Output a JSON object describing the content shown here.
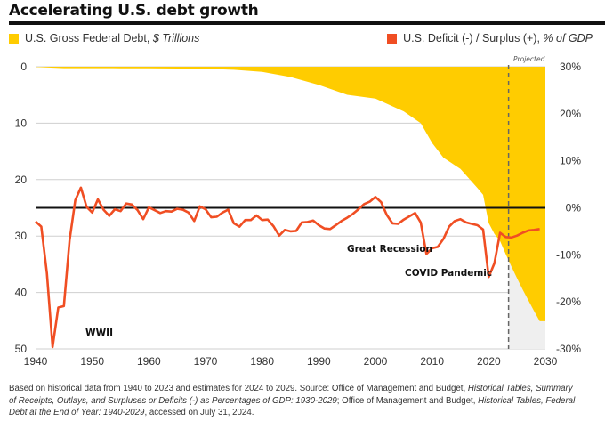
{
  "title": "Accelerating U.S. debt growth",
  "legend": {
    "debt": {
      "label": "U.S. Gross Federal Debt, ",
      "label_italic": "$ Trillions",
      "color": "#FFCC00"
    },
    "deficit": {
      "label": "U.S. Deficit (-) / Surplus (+), ",
      "label_italic": "% of GDP",
      "color": "#F04E23"
    }
  },
  "projected_label": "Projected",
  "source": {
    "text1": "Based on historical data from 1940 to 2023 and estimates for 2024 to 2029. Source: Office of Management and Budget, ",
    "italic1": "Historical Tables, Summary of Receipts, Outlays, and Surpluses or Deficits (-) as Percentages of GDP: 1930-2029",
    "text2": "; Office of Management and Budget, ",
    "italic2": "Historical Tables, Federal Debt at the End of Year: 1940-2029",
    "text3": ", accessed on July 31, 2024."
  },
  "chart_data": {
    "type": "area+line",
    "title": "Accelerating U.S. debt growth",
    "x_axis": {
      "range": [
        1940,
        2030
      ],
      "ticks": [
        "1940",
        "1950",
        "1960",
        "1970",
        "1980",
        "1990",
        "2000",
        "2010",
        "2020",
        "2030"
      ]
    },
    "left_axis": {
      "label": "U.S. Gross Federal Debt, $ Trillions",
      "range": [
        0,
        50
      ],
      "inverted": true,
      "ticks": [
        "0",
        "10",
        "20",
        "30",
        "40",
        "50"
      ]
    },
    "right_axis": {
      "label": "U.S. Deficit (-) / Surplus (+), % of GDP",
      "range": [
        -30,
        30
      ],
      "ticks": [
        "30%",
        "20%",
        "10%",
        "0%",
        "-10%",
        "-20%",
        "-30%"
      ]
    },
    "grid": true,
    "projection_start": 2023.5,
    "series": [
      {
        "name": "U.S. Gross Federal Debt, $ Trillions",
        "type": "area",
        "color": "#FFCC00",
        "x": [
          1940,
          1945,
          1950,
          1955,
          1960,
          1965,
          1970,
          1975,
          1980,
          1985,
          1990,
          1995,
          2000,
          2005,
          2008,
          2010,
          2012,
          2015,
          2018,
          2019,
          2020,
          2021,
          2022,
          2023,
          2024,
          2025,
          2026,
          2027,
          2028,
          2029
        ],
        "values": [
          0.05,
          0.26,
          0.26,
          0.27,
          0.29,
          0.32,
          0.38,
          0.54,
          0.91,
          1.82,
          3.21,
          4.97,
          5.63,
          7.91,
          10.0,
          13.5,
          16.1,
          18.1,
          21.5,
          22.7,
          27.7,
          29.6,
          30.9,
          33.2,
          35.4,
          37.5,
          39.5,
          41.4,
          43.3,
          45.1
        ]
      },
      {
        "name": "U.S. Deficit (-) / Surplus (+), % of GDP",
        "type": "line",
        "color": "#F04E23",
        "x": [
          1940,
          1941,
          1942,
          1943,
          1944,
          1945,
          1946,
          1947,
          1948,
          1949,
          1950,
          1951,
          1952,
          1953,
          1954,
          1955,
          1956,
          1957,
          1958,
          1959,
          1960,
          1961,
          1962,
          1963,
          1964,
          1965,
          1966,
          1967,
          1968,
          1969,
          1970,
          1971,
          1972,
          1973,
          1974,
          1975,
          1976,
          1977,
          1978,
          1979,
          1980,
          1981,
          1982,
          1983,
          1984,
          1985,
          1986,
          1987,
          1988,
          1989,
          1990,
          1991,
          1992,
          1993,
          1994,
          1995,
          1996,
          1997,
          1998,
          1999,
          2000,
          2001,
          2002,
          2003,
          2004,
          2005,
          2006,
          2007,
          2008,
          2009,
          2010,
          2011,
          2012,
          2013,
          2014,
          2015,
          2016,
          2017,
          2018,
          2019,
          2020,
          2021,
          2022,
          2023,
          2024,
          2025,
          2026,
          2027,
          2028,
          2029
        ],
        "values": [
          -2.9,
          -4.0,
          -13.9,
          -29.6,
          -21.2,
          -20.9,
          -6.9,
          1.6,
          4.3,
          0.2,
          -1.0,
          1.8,
          -0.4,
          -1.7,
          -0.3,
          -0.7,
          0.9,
          0.7,
          -0.5,
          -2.4,
          0.1,
          -0.5,
          -1.1,
          -0.7,
          -0.8,
          -0.2,
          -0.4,
          -1.0,
          -2.8,
          0.3,
          -0.3,
          -2.0,
          -1.9,
          -1.0,
          -0.4,
          -3.3,
          -4.0,
          -2.6,
          -2.6,
          -1.6,
          -2.6,
          -2.5,
          -3.9,
          -5.9,
          -4.7,
          -5.0,
          -4.9,
          -3.1,
          -3.0,
          -2.7,
          -3.7,
          -4.4,
          -4.5,
          -3.7,
          -2.8,
          -2.1,
          -1.3,
          -0.3,
          0.8,
          1.3,
          2.3,
          1.2,
          -1.5,
          -3.3,
          -3.4,
          -2.5,
          -1.8,
          -1.1,
          -3.1,
          -9.8,
          -8.6,
          -8.3,
          -6.6,
          -4.0,
          -2.8,
          -2.4,
          -3.1,
          -3.4,
          -3.7,
          -4.6,
          -14.7,
          -11.8,
          -5.3,
          -6.2,
          -6.3,
          -5.9,
          -5.3,
          -4.8,
          -4.7,
          -4.5
        ]
      }
    ],
    "annotations": [
      "WWII",
      "Great Recession",
      "COVID Pandemic",
      "Projected"
    ]
  }
}
